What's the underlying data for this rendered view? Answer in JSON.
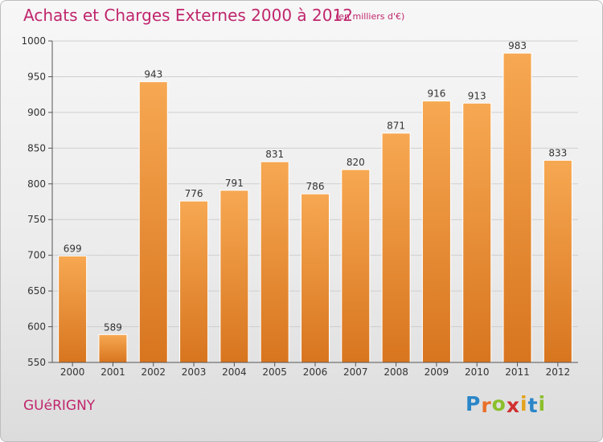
{
  "header": {
    "title": "Achats et Charges Externes 2000 à 2012",
    "unit": "(en milliers d'€)"
  },
  "footer": {
    "town": "GUéRIGNY",
    "logo_letters": [
      "P",
      "r",
      "o",
      "x",
      "i",
      "t",
      "i"
    ],
    "logo_colors": [
      "#2a86c8",
      "#e8702a",
      "#8bbf2c",
      "#d03030",
      "#e3a21a",
      "#2a86c8",
      "#8bbf2c"
    ]
  },
  "chart_data": {
    "type": "bar",
    "categories": [
      "2000",
      "2001",
      "2002",
      "2003",
      "2004",
      "2005",
      "2006",
      "2007",
      "2008",
      "2009",
      "2010",
      "2011",
      "2012"
    ],
    "values": [
      699,
      589,
      943,
      776,
      791,
      831,
      786,
      820,
      871,
      916,
      913,
      983,
      833
    ],
    "title": "Achats et Charges Externes 2000 à 2012",
    "ylim": [
      550,
      1000
    ],
    "yticks": [
      550,
      600,
      650,
      700,
      750,
      800,
      850,
      900,
      950,
      1000
    ],
    "grid": true,
    "bar_color_top": "#f7a852",
    "bar_color_bottom": "#d8751f"
  }
}
